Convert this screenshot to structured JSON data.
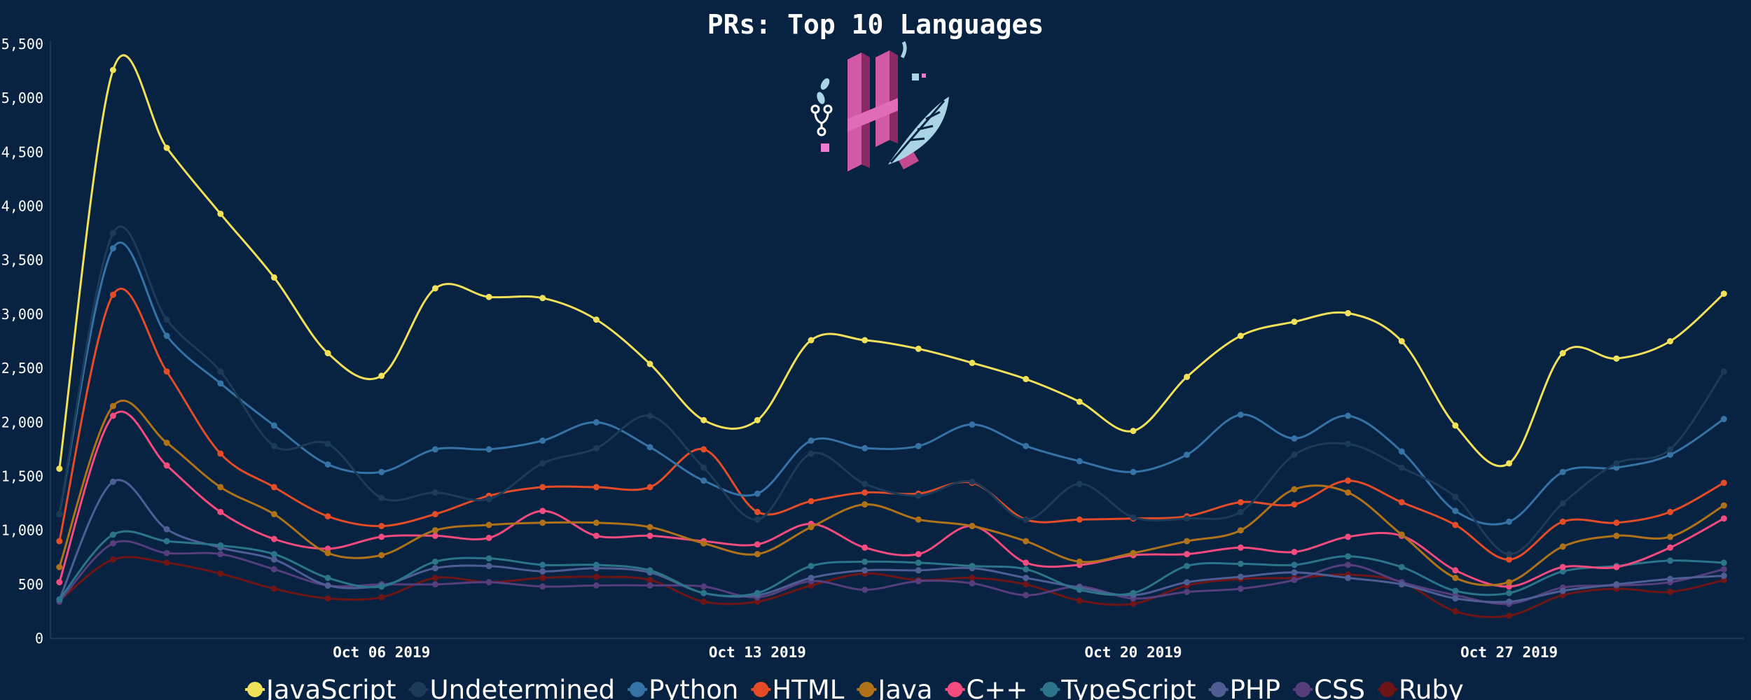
{
  "chart_data": {
    "type": "line",
    "title": "PRs: Top 10 Languages",
    "xlabel": "",
    "ylabel": "",
    "ylim": [
      0,
      5500
    ],
    "yticks": [
      0,
      500,
      1000,
      1500,
      2000,
      2500,
      3000,
      3500,
      4000,
      4500,
      5000,
      5500
    ],
    "ytick_labels": [
      "0",
      "500",
      "1,000",
      "1,500",
      "2,000",
      "2,500",
      "3,000",
      "3,500",
      "4,000",
      "4,500",
      "5,000",
      "5,500"
    ],
    "x": [
      "2019-09-30",
      "2019-10-01",
      "2019-10-02",
      "2019-10-03",
      "2019-10-04",
      "2019-10-05",
      "2019-10-06",
      "2019-10-07",
      "2019-10-08",
      "2019-10-09",
      "2019-10-10",
      "2019-10-11",
      "2019-10-12",
      "2019-10-13",
      "2019-10-14",
      "2019-10-15",
      "2019-10-16",
      "2019-10-17",
      "2019-10-18",
      "2019-10-19",
      "2019-10-20",
      "2019-10-21",
      "2019-10-22",
      "2019-10-23",
      "2019-10-24",
      "2019-10-25",
      "2019-10-26",
      "2019-10-27",
      "2019-10-28",
      "2019-10-29",
      "2019-10-30",
      "2019-10-31"
    ],
    "xlim": [
      "2019-09-29T20:00",
      "2019-10-31T09:00"
    ],
    "xticks": [
      "2019-10-06",
      "2019-10-13",
      "2019-10-20",
      "2019-10-27"
    ],
    "xtick_labels": [
      "Oct 06 2019",
      "Oct 13 2019",
      "Oct 20 2019",
      "Oct 27 2019"
    ],
    "grid": false,
    "legend_position": "bottom",
    "background": "#082341",
    "series": [
      {
        "name": "Ruby",
        "color": "#701516",
        "values": [
          350,
          730,
          700,
          600,
          460,
          370,
          380,
          560,
          520,
          560,
          570,
          540,
          340,
          340,
          490,
          600,
          540,
          560,
          500,
          350,
          320,
          490,
          550,
          560,
          590,
          520,
          250,
          210,
          400,
          460,
          430,
          540
        ]
      },
      {
        "name": "CSS",
        "color": "#563d7c",
        "values": [
          340,
          880,
          790,
          780,
          640,
          490,
          500,
          500,
          520,
          480,
          490,
          490,
          480,
          380,
          530,
          450,
          530,
          510,
          400,
          480,
          370,
          430,
          460,
          540,
          680,
          520,
          400,
          320,
          470,
          490,
          520,
          640
        ]
      },
      {
        "name": "PHP",
        "color": "#4f5d95",
        "values": [
          360,
          1450,
          1010,
          840,
          730,
          490,
          490,
          650,
          670,
          620,
          650,
          610,
          420,
          400,
          560,
          630,
          630,
          650,
          560,
          470,
          400,
          520,
          570,
          610,
          560,
          500,
          370,
          340,
          440,
          500,
          550,
          580
        ]
      },
      {
        "name": "TypeScript",
        "color": "#2b7489",
        "values": [
          360,
          960,
          900,
          860,
          780,
          560,
          480,
          710,
          740,
          680,
          680,
          630,
          420,
          420,
          670,
          710,
          700,
          670,
          640,
          450,
          420,
          670,
          690,
          680,
          760,
          660,
          440,
          420,
          620,
          670,
          720,
          700
        ]
      },
      {
        "name": "C++",
        "color": "#f34b7d",
        "values": [
          520,
          2060,
          1600,
          1170,
          920,
          830,
          940,
          950,
          930,
          1180,
          950,
          950,
          900,
          870,
          1060,
          840,
          780,
          1040,
          700,
          680,
          770,
          780,
          840,
          800,
          940,
          950,
          630,
          480,
          660,
          660,
          840,
          1110
        ]
      },
      {
        "name": "Java",
        "color": "#b07219",
        "values": [
          660,
          2150,
          1810,
          1400,
          1150,
          790,
          770,
          1000,
          1050,
          1070,
          1070,
          1030,
          880,
          780,
          1030,
          1240,
          1100,
          1040,
          900,
          710,
          790,
          900,
          1000,
          1380,
          1350,
          960,
          560,
          520,
          850,
          950,
          940,
          1230
        ]
      },
      {
        "name": "HTML",
        "color": "#e34c26",
        "values": [
          900,
          3180,
          2470,
          1710,
          1400,
          1130,
          1040,
          1150,
          1320,
          1400,
          1400,
          1400,
          1750,
          1170,
          1270,
          1350,
          1340,
          1440,
          1100,
          1100,
          1110,
          1130,
          1260,
          1240,
          1460,
          1260,
          1050,
          730,
          1080,
          1070,
          1170,
          1440
        ]
      },
      {
        "name": "Python",
        "color": "#3572a5",
        "values": [
          1150,
          3610,
          2800,
          2360,
          1970,
          1610,
          1540,
          1750,
          1750,
          1830,
          2000,
          1770,
          1460,
          1340,
          1830,
          1760,
          1780,
          1980,
          1780,
          1640,
          1540,
          1700,
          2070,
          1850,
          2060,
          1730,
          1180,
          1080,
          1540,
          1580,
          1700,
          2030
        ]
      },
      {
        "name": "Undetermined",
        "color": "#1c3b58",
        "values": [
          1150,
          3750,
          2950,
          2470,
          1780,
          1800,
          1300,
          1350,
          1290,
          1620,
          1760,
          2060,
          1580,
          1100,
          1710,
          1430,
          1320,
          1450,
          1100,
          1430,
          1120,
          1110,
          1170,
          1700,
          1800,
          1580,
          1310,
          780,
          1250,
          1620,
          1750,
          2470
        ]
      },
      {
        "name": "JavaScript",
        "color": "#f1e05a",
        "values": [
          1570,
          5260,
          4540,
          3930,
          3340,
          2640,
          2430,
          3240,
          3160,
          3150,
          2950,
          2540,
          2020,
          2020,
          2760,
          2760,
          2680,
          2550,
          2400,
          2190,
          1920,
          2420,
          2800,
          2930,
          3010,
          2750,
          1970,
          1620,
          2640,
          2590,
          2750,
          3190
        ]
      }
    ],
    "legend_order": [
      "JavaScript",
      "Undetermined",
      "Python",
      "HTML",
      "Java",
      "C++",
      "TypeScript",
      "PHP",
      "CSS",
      "Ruby"
    ]
  },
  "logo": {
    "name": "hacktoberfest-logo-icon"
  }
}
